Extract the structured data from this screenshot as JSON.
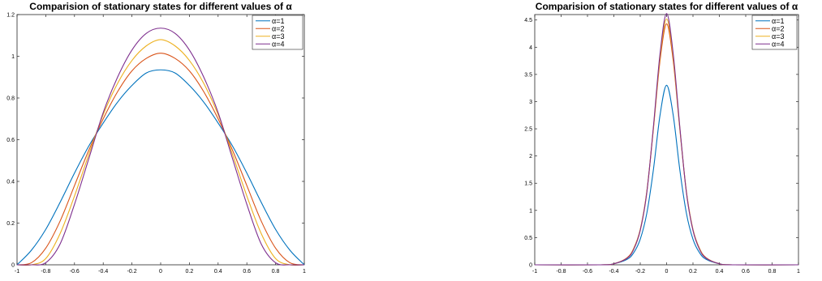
{
  "chart_data": [
    {
      "type": "line",
      "title": "Comparision of stationary states for different values of α",
      "xlabel": "",
      "ylabel": "",
      "xlim": [
        -1,
        1
      ],
      "ylim": [
        0,
        1.2
      ],
      "xticks": [
        -1,
        -0.8,
        -0.6,
        -0.4,
        -0.2,
        0,
        0.2,
        0.4,
        0.6,
        0.8,
        1
      ],
      "xtick_labels": [
        "-1",
        "-0.8",
        "-0.6",
        "-0.4",
        "-0.2",
        "0",
        "0.2",
        "0.4",
        "0.6",
        "0.8",
        "1"
      ],
      "yticks": [
        0,
        0.2,
        0.4,
        0.6,
        0.8,
        1,
        1.2
      ],
      "ytick_labels": [
        "0",
        "0.2",
        "0.4",
        "0.6",
        "0.8",
        "1",
        "1.2"
      ],
      "grid": false,
      "legend_position": "top-right",
      "series": [
        {
          "name": "α=1",
          "color": "#0072BD",
          "x": [
            -1,
            -0.9,
            -0.8,
            -0.7,
            -0.6,
            -0.5,
            -0.4,
            -0.3,
            -0.2,
            -0.1,
            0,
            0.1,
            0.2,
            0.3,
            0.4,
            0.5,
            0.6,
            0.7,
            0.8,
            0.9,
            1
          ],
          "y": [
            0,
            0.07,
            0.17,
            0.3,
            0.44,
            0.57,
            0.68,
            0.78,
            0.86,
            0.92,
            0.935,
            0.92,
            0.86,
            0.78,
            0.68,
            0.57,
            0.44,
            0.3,
            0.17,
            0.07,
            0
          ]
        },
        {
          "name": "α=2",
          "color": "#D95319",
          "x": [
            -1,
            -0.9,
            -0.8,
            -0.7,
            -0.6,
            -0.5,
            -0.4,
            -0.3,
            -0.2,
            -0.1,
            0,
            0.1,
            0.2,
            0.3,
            0.4,
            0.5,
            0.6,
            0.7,
            0.8,
            0.9,
            1
          ],
          "y": [
            0,
            0.01,
            0.08,
            0.21,
            0.38,
            0.55,
            0.7,
            0.83,
            0.93,
            0.99,
            1.015,
            0.99,
            0.93,
            0.83,
            0.7,
            0.55,
            0.38,
            0.21,
            0.08,
            0.01,
            0
          ]
        },
        {
          "name": "α=3",
          "color": "#EDB120",
          "x": [
            -1,
            -0.9,
            -0.8,
            -0.7,
            -0.6,
            -0.5,
            -0.4,
            -0.3,
            -0.2,
            -0.1,
            0,
            0.1,
            0.2,
            0.3,
            0.4,
            0.5,
            0.6,
            0.7,
            0.8,
            0.9,
            1
          ],
          "y": [
            0,
            0,
            0.03,
            0.15,
            0.33,
            0.53,
            0.72,
            0.87,
            0.98,
            1.05,
            1.08,
            1.05,
            0.98,
            0.87,
            0.72,
            0.53,
            0.33,
            0.15,
            0.03,
            0,
            0
          ]
        },
        {
          "name": "α=4",
          "color": "#7E2F8E",
          "x": [
            -1,
            -0.9,
            -0.8,
            -0.7,
            -0.6,
            -0.5,
            -0.4,
            -0.3,
            -0.2,
            -0.1,
            0,
            0.1,
            0.2,
            0.3,
            0.4,
            0.5,
            0.6,
            0.7,
            0.8,
            0.9,
            1
          ],
          "y": [
            0,
            0,
            0.01,
            0.1,
            0.29,
            0.51,
            0.73,
            0.9,
            1.03,
            1.11,
            1.135,
            1.11,
            1.03,
            0.9,
            0.73,
            0.51,
            0.29,
            0.1,
            0.01,
            0,
            0
          ]
        }
      ]
    },
    {
      "type": "line",
      "title": "Comparision of stationary states for different values of α",
      "xlabel": "",
      "ylabel": "",
      "xlim": [
        -1,
        1
      ],
      "ylim": [
        0,
        4.6
      ],
      "xticks": [
        -1,
        -0.8,
        -0.6,
        -0.4,
        -0.2,
        0,
        0.2,
        0.4,
        0.6,
        0.8,
        1
      ],
      "xtick_labels": [
        "-1",
        "-0.8",
        "-0.6",
        "-0.4",
        "-0.2",
        "0",
        "0.2",
        "0.4",
        "0.6",
        "0.8",
        "1"
      ],
      "yticks": [
        0,
        0.5,
        1,
        1.5,
        2,
        2.5,
        3,
        3.5,
        4,
        4.5
      ],
      "ytick_labels": [
        "0",
        "0.5",
        "1",
        "1.5",
        "2",
        "2.5",
        "3",
        "3.5",
        "4",
        "4.5"
      ],
      "grid": false,
      "legend_position": "top-right",
      "series": [
        {
          "name": "α=1",
          "color": "#0072BD",
          "x": [
            -1,
            -0.5,
            -0.4,
            -0.3,
            -0.25,
            -0.2,
            -0.15,
            -0.1,
            -0.05,
            0,
            0.05,
            0.1,
            0.15,
            0.2,
            0.25,
            0.3,
            0.4,
            0.5,
            1
          ],
          "y": [
            0,
            0,
            0.02,
            0.1,
            0.22,
            0.47,
            0.95,
            1.75,
            2.75,
            3.3,
            2.75,
            1.75,
            0.95,
            0.47,
            0.22,
            0.1,
            0.02,
            0,
            0
          ]
        },
        {
          "name": "α=2",
          "color": "#D95319",
          "x": [
            -1,
            -0.5,
            -0.4,
            -0.3,
            -0.25,
            -0.2,
            -0.15,
            -0.1,
            -0.05,
            0,
            0.05,
            0.1,
            0.15,
            0.2,
            0.25,
            0.3,
            0.4,
            0.5,
            1
          ],
          "y": [
            0,
            0,
            0.02,
            0.13,
            0.3,
            0.65,
            1.35,
            2.5,
            3.75,
            4.43,
            3.75,
            2.5,
            1.35,
            0.65,
            0.3,
            0.13,
            0.02,
            0,
            0
          ]
        },
        {
          "name": "α=3",
          "color": "#EDB120",
          "x": [
            -1,
            -0.5,
            -0.4,
            -0.3,
            -0.25,
            -0.2,
            -0.15,
            -0.1,
            -0.05,
            0,
            0.05,
            0.1,
            0.15,
            0.2,
            0.25,
            0.3,
            0.4,
            0.5,
            1
          ],
          "y": [
            0,
            0,
            0.02,
            0.12,
            0.29,
            0.64,
            1.34,
            2.52,
            3.82,
            4.52,
            3.82,
            2.52,
            1.34,
            0.64,
            0.29,
            0.12,
            0.02,
            0,
            0
          ]
        },
        {
          "name": "α=4",
          "color": "#7E2F8E",
          "x": [
            -1,
            -0.5,
            -0.4,
            -0.3,
            -0.25,
            -0.2,
            -0.15,
            -0.1,
            -0.05,
            0,
            0.05,
            0.1,
            0.15,
            0.2,
            0.25,
            0.3,
            0.4,
            0.5,
            1
          ],
          "y": [
            0,
            0,
            0.02,
            0.12,
            0.28,
            0.63,
            1.33,
            2.54,
            3.88,
            4.62,
            3.88,
            2.54,
            1.33,
            0.63,
            0.28,
            0.12,
            0.02,
            0,
            0
          ]
        }
      ]
    }
  ]
}
